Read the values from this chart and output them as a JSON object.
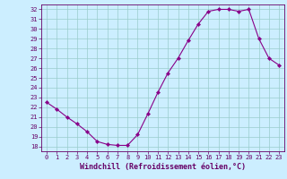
{
  "x": [
    0,
    1,
    2,
    3,
    4,
    5,
    6,
    7,
    8,
    9,
    10,
    11,
    12,
    13,
    14,
    15,
    16,
    17,
    18,
    19,
    20,
    21,
    22,
    23
  ],
  "y": [
    22.5,
    21.8,
    21.0,
    20.3,
    19.5,
    18.5,
    18.2,
    18.1,
    18.1,
    19.2,
    21.3,
    23.5,
    25.5,
    27.0,
    28.8,
    30.5,
    31.8,
    32.0,
    32.0,
    31.8,
    32.0,
    29.0,
    27.0,
    26.3
  ],
  "line_color": "#880088",
  "marker": "D",
  "marker_size": 2.2,
  "bg_color": "#cceeff",
  "grid_color": "#99cccc",
  "xlabel": "Windchill (Refroidissement éolien,°C)",
  "ylim": [
    17.5,
    32.5
  ],
  "xlim": [
    -0.5,
    23.5
  ],
  "yticks": [
    18,
    19,
    20,
    21,
    22,
    23,
    24,
    25,
    26,
    27,
    28,
    29,
    30,
    31,
    32
  ],
  "xticks": [
    0,
    1,
    2,
    3,
    4,
    5,
    6,
    7,
    8,
    9,
    10,
    11,
    12,
    13,
    14,
    15,
    16,
    17,
    18,
    19,
    20,
    21,
    22,
    23
  ],
  "tick_color": "#660066",
  "axis_color": "#660066",
  "tick_fontsize": 5.0,
  "label_fontsize": 6.0
}
